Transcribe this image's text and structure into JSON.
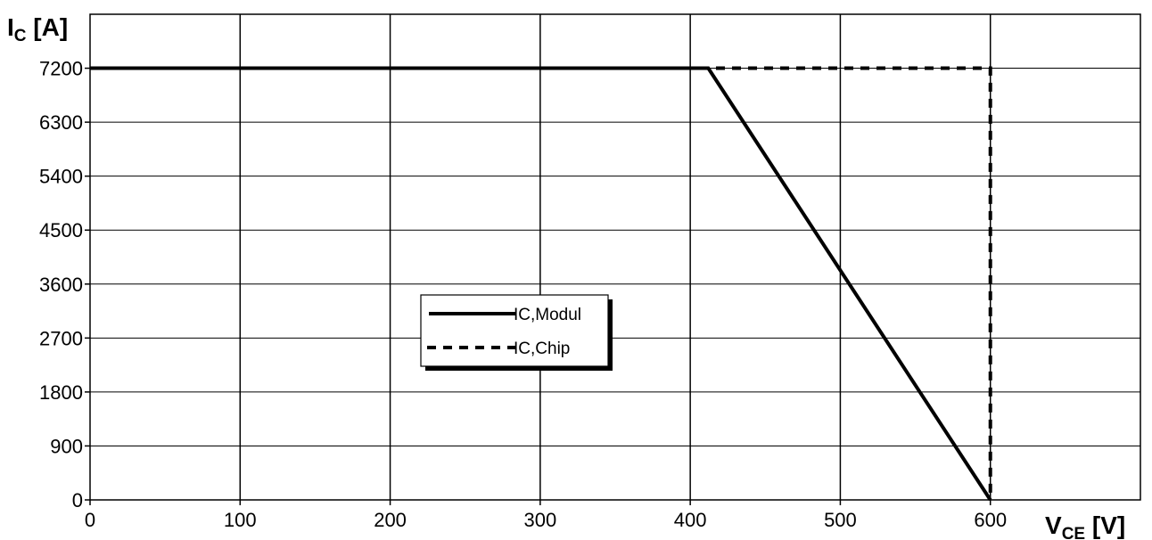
{
  "chart_data": {
    "type": "line",
    "ylabel": {
      "main": "I",
      "sub": "C",
      "unit": " [A]"
    },
    "xlabel": {
      "main": "V",
      "sub": "CE",
      "unit": " [V]"
    },
    "xlim": [
      0,
      700
    ],
    "ylim": [
      0,
      8100
    ],
    "x_ticks": [
      "0",
      "100",
      "200",
      "300",
      "400",
      "500",
      "600"
    ],
    "y_ticks": [
      "0",
      "900",
      "1800",
      "2700",
      "3600",
      "4500",
      "5400",
      "6300",
      "7200"
    ],
    "x_tick_values": [
      0,
      100,
      200,
      300,
      400,
      500,
      600
    ],
    "y_tick_values": [
      0,
      900,
      1800,
      2700,
      3600,
      4500,
      5400,
      6300,
      7200
    ],
    "grid": true,
    "legend_position": "center-left",
    "series": [
      {
        "name": "IC,Modul",
        "style": "solid",
        "color": "#000000",
        "x": [
          0,
          412,
          600
        ],
        "y": [
          7200,
          7200,
          0
        ]
      },
      {
        "name": "IC,Chip",
        "style": "dashed",
        "color": "#000000",
        "x": [
          0,
          600,
          600
        ],
        "y": [
          7200,
          7200,
          0
        ]
      }
    ]
  }
}
